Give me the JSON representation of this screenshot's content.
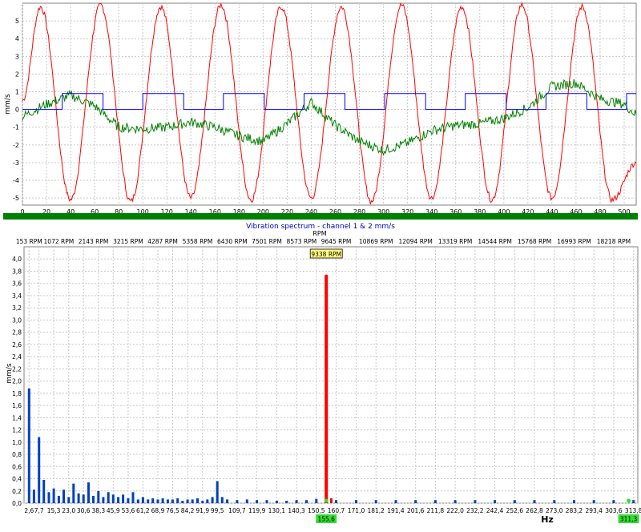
{
  "colors": {
    "grid": "#c8c8c8",
    "axis": "#000000",
    "green_band": "#008000",
    "red": "#ff0000",
    "green": "#008000",
    "blue": "#0000ff",
    "bar_blue": "#0040c0",
    "marker_yellow": "#ffff80",
    "marker_green": "#33dd33",
    "title_blue": "#0000cc"
  },
  "chart_data": [
    {
      "type": "line",
      "ylabel": "mm/s",
      "xlim": [
        0,
        510
      ],
      "ylim": [
        -5.4,
        6.0
      ],
      "x_ticks": [
        0,
        20,
        40,
        60,
        80,
        100,
        120,
        140,
        160,
        180,
        200,
        220,
        240,
        260,
        280,
        300,
        320,
        340,
        360,
        380,
        400,
        420,
        440,
        460,
        480,
        500
      ],
      "y_ticks": [
        5,
        4,
        3,
        2,
        1,
        0,
        -1,
        -2,
        -3,
        -4,
        -5
      ],
      "grid": true,
      "series": [
        {
          "color": "#ff0000",
          "x": [
            0,
            15,
            40,
            65,
            90,
            115,
            140,
            165,
            190,
            215,
            240,
            265,
            290,
            315,
            340,
            365,
            390,
            415,
            440,
            465,
            490,
            510
          ],
          "values": [
            0.5,
            5.8,
            -5.1,
            5.9,
            -5.2,
            5.8,
            -5.0,
            5.9,
            -5.1,
            5.8,
            -5.0,
            5.8,
            -5.2,
            5.9,
            -5.0,
            5.8,
            -5.1,
            5.9,
            -5.0,
            5.8,
            -5.1,
            -3.0
          ]
        },
        {
          "color": "#008000",
          "x": [
            0,
            20,
            40,
            60,
            80,
            100,
            120,
            140,
            160,
            180,
            200,
            220,
            240,
            260,
            280,
            300,
            320,
            340,
            360,
            380,
            400,
            420,
            440,
            460,
            480,
            500,
            510
          ],
          "values": [
            -0.4,
            0.3,
            0.8,
            0.2,
            -1.0,
            -1.1,
            -1.0,
            -0.7,
            -1.0,
            -1.5,
            -1.8,
            -0.8,
            0.4,
            -0.9,
            -1.8,
            -2.3,
            -1.9,
            -1.2,
            -0.9,
            -0.8,
            -0.5,
            0.1,
            1.3,
            1.5,
            0.6,
            0.3,
            -0.3
          ]
        },
        {
          "color": "#0000ff",
          "x": [
            0,
            33,
            33,
            67,
            67,
            100,
            100,
            134,
            134,
            167,
            167,
            201,
            201,
            234,
            234,
            268,
            268,
            301,
            301,
            335,
            335,
            368,
            368,
            402,
            402,
            435,
            435,
            469,
            469,
            502,
            502,
            510
          ],
          "values": [
            0,
            0,
            0.9,
            0.9,
            0,
            0,
            0.9,
            0.9,
            0,
            0,
            0.9,
            0.9,
            0,
            0,
            0.9,
            0.9,
            0,
            0,
            0.9,
            0.9,
            0,
            0,
            0.9,
            0.9,
            0,
            0,
            0.9,
            0.9,
            0,
            0,
            0.9,
            0.9
          ]
        }
      ]
    },
    {
      "type": "bar",
      "title": "Vibration spectrum  - channel 1 & 2 mm/s",
      "ylabel": "mm/s",
      "xlabel": "Hz",
      "top_axis_title": "RPM",
      "xlim": [
        0,
        316
      ],
      "ylim": [
        0,
        4.2
      ],
      "y_ticks": [
        "0,0",
        "0,2",
        "0,4",
        "0,6",
        "0,8",
        "1,0",
        "1,2",
        "1,4",
        "1,6",
        "1,8",
        "2,0",
        "2,2",
        "2,4",
        "2,6",
        "2,8",
        "3,0",
        "3,2",
        "3,4",
        "3,6",
        "3,8",
        "4,0"
      ],
      "x_ticks": [
        "2,6",
        "7,7",
        "15,3",
        "23,0",
        "30,6",
        "38,3",
        "45,9",
        "53,6",
        "61,2",
        "68,9",
        "76,5",
        "84,2",
        "91,9",
        "99,5",
        "109,7",
        "119,9",
        "130,1",
        "140,3",
        "150,5",
        "160,7",
        "171,0",
        "181,2",
        "191,4",
        "201,6",
        "211,8",
        "222,0",
        "232,2",
        "242,4",
        "252,6",
        "262,8",
        "273,0",
        "283,2",
        "293,4",
        "303,6",
        "313,8"
      ],
      "x_tick_values": [
        2.6,
        7.7,
        15.3,
        23.0,
        30.6,
        38.3,
        45.9,
        53.6,
        61.2,
        68.9,
        76.5,
        84.2,
        91.9,
        99.5,
        109.7,
        119.9,
        130.1,
        140.3,
        150.5,
        160.7,
        171.0,
        181.2,
        191.4,
        201.6,
        211.8,
        222.0,
        232.2,
        242.4,
        252.6,
        262.8,
        273.0,
        283.2,
        293.4,
        303.6,
        313.8
      ],
      "rpm_ticks": [
        "153 RPM",
        "1072 RPM",
        "2143 RPM",
        "3215 RPM",
        "4287 RPM",
        "5358 RPM",
        "6430 RPM",
        "7501 RPM",
        "8573 RPM",
        "9645 RPM",
        "10869 RPM",
        "12094 RPM",
        "13319 RPM",
        "14544 RPM",
        "15768 RPM",
        "16993 RPM",
        "18218 RPM"
      ],
      "rpm_tick_values": [
        2.6,
        17.9,
        35.7,
        53.6,
        71.4,
        89.3,
        107.2,
        125.0,
        142.9,
        160.7,
        181.2,
        201.6,
        222.0,
        242.4,
        262.8,
        283.2,
        303.6
      ],
      "bars": {
        "color": "#0040c0",
        "x": [
          2.6,
          5.1,
          7.7,
          10.2,
          12.8,
          15.3,
          17.9,
          20.4,
          23.0,
          25.5,
          28.1,
          30.6,
          33.2,
          35.7,
          38.3,
          40.8,
          43.4,
          45.9,
          48.5,
          51.0,
          53.6,
          56.1,
          58.7,
          61.2,
          63.8,
          66.3,
          68.9,
          71.4,
          74.0,
          76.5,
          79.1,
          81.6,
          84.2,
          86.7,
          89.3,
          91.9,
          94.4,
          97.0,
          99.5,
          102.0,
          104.6,
          109.7,
          114.8,
          119.9,
          125.0,
          130.1,
          135.2,
          140.3,
          145.4,
          150.5,
          160.7,
          171.0,
          181.2,
          191.4,
          201.6,
          211.8,
          222.0,
          232.2,
          242.4,
          252.6,
          262.8,
          273.0,
          283.2,
          293.4,
          303.6,
          313.8
        ],
        "values": [
          1.88,
          0.22,
          1.08,
          0.38,
          0.18,
          0.24,
          0.12,
          0.22,
          0.1,
          0.32,
          0.16,
          0.14,
          0.34,
          0.12,
          0.2,
          0.1,
          0.18,
          0.14,
          0.1,
          0.14,
          0.08,
          0.18,
          0.06,
          0.1,
          0.06,
          0.08,
          0.06,
          0.08,
          0.06,
          0.06,
          0.08,
          0.04,
          0.06,
          0.06,
          0.08,
          0.04,
          0.06,
          0.1,
          0.36,
          0.1,
          0.06,
          0.05,
          0.06,
          0.05,
          0.05,
          0.04,
          0.04,
          0.05,
          0.05,
          0.07,
          0.05,
          0.05,
          0.05,
          0.05,
          0.05,
          0.05,
          0.05,
          0.05,
          0.05,
          0.05,
          0.05,
          0.05,
          0.05,
          0.05,
          0.05,
          0.05
        ]
      },
      "peak": {
        "x": 155.6,
        "value": 3.72,
        "color": "#ff0000"
      },
      "small_red_bar": {
        "x": 158.2,
        "value": 0.08
      },
      "markers": {
        "rpm_label": "9338 RPM",
        "rpm_marker_x": 155.6,
        "hz_labels": [
          {
            "text": "155,6",
            "x": 155.6
          },
          {
            "text": "311,3",
            "x": 311.3
          }
        ]
      }
    }
  ]
}
